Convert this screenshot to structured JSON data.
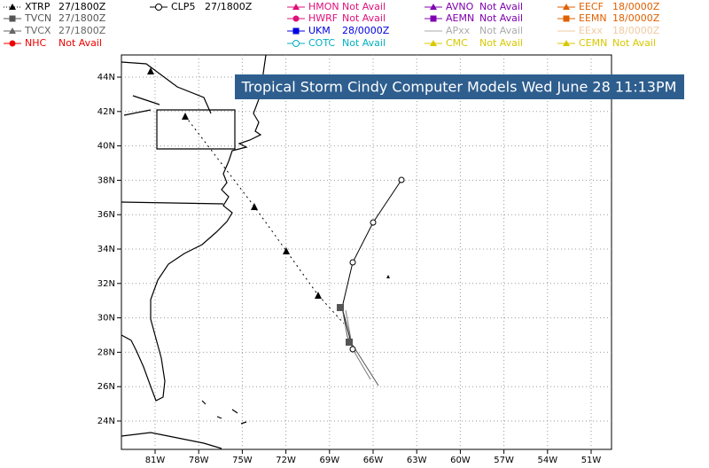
{
  "legend": [
    [
      {
        "label": "XTRP",
        "status": "27/1800Z"
      },
      {
        "label": "TVCN",
        "status": "27/1800Z"
      },
      {
        "label": "TVCX",
        "status": "27/1800Z"
      },
      {
        "label": "NHC",
        "status": "Not Avail"
      }
    ],
    [
      {
        "label": "CLP5",
        "status": "27/1800Z"
      }
    ],
    [
      {
        "label": "HMON",
        "status": "Not Avail"
      },
      {
        "label": "HWRF",
        "status": "Not Avail"
      },
      {
        "label": "UKM",
        "status": "28/0000Z"
      },
      {
        "label": "COTC",
        "status": "Not Avail"
      }
    ],
    [
      {
        "label": "AVNO",
        "status": "Not Avail"
      },
      {
        "label": "AEMN",
        "status": "Not Avail"
      },
      {
        "label": "APxx",
        "status": "Not Avail"
      },
      {
        "label": "CMC",
        "status": "Not Avail"
      }
    ],
    [
      {
        "label": "EECF",
        "status": "18/0000Z"
      },
      {
        "label": "EEMN",
        "status": "18/0000Z"
      },
      {
        "label": "EExx",
        "status": "18/0000Z"
      },
      {
        "label": "CEMN",
        "status": "Not Avail"
      }
    ]
  ],
  "title": "Tropical Storm Cindy Computer Models Wed June 28 11:13PM",
  "lat_labels": [
    "44N",
    "42N",
    "40N",
    "38N",
    "36N",
    "34N",
    "32N",
    "30N",
    "28N",
    "26N",
    "24N"
  ],
  "lon_labels": [
    "81W",
    "78W",
    "75W",
    "72W",
    "69W",
    "66W",
    "63W",
    "60W",
    "57W",
    "54W",
    "51W"
  ]
}
